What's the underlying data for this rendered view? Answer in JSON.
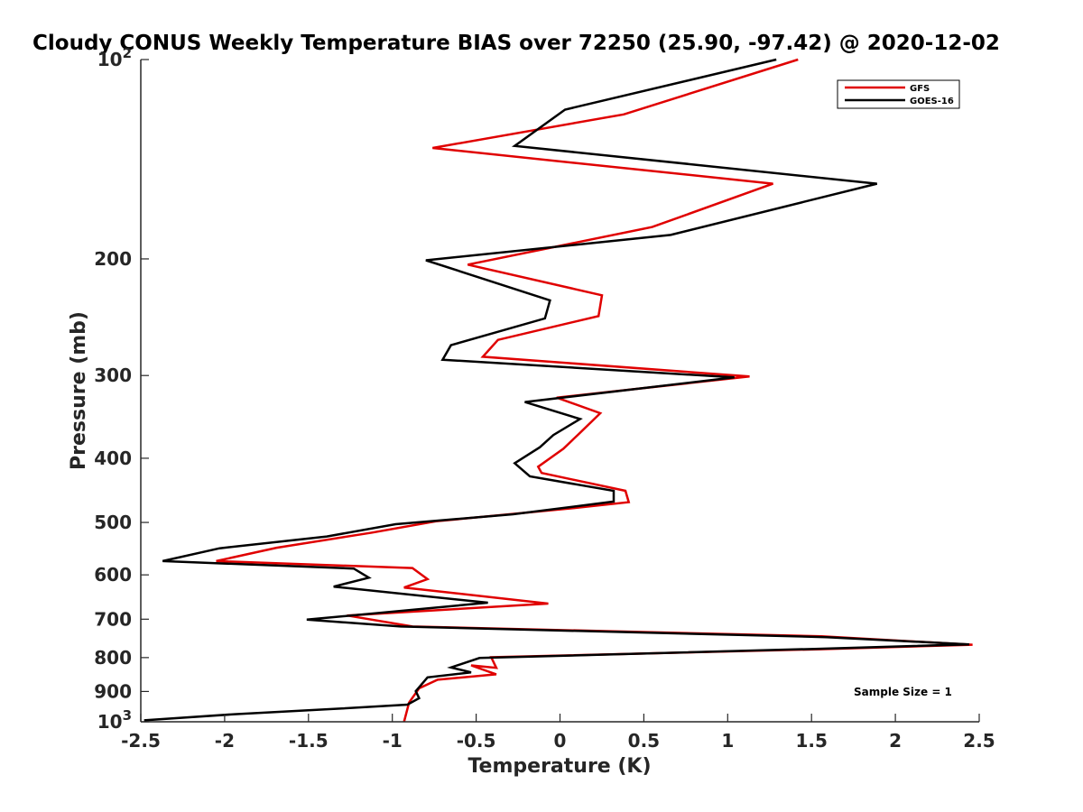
{
  "chart_data": {
    "type": "line",
    "title": "Cloudy CONUS Weekly Temperature BIAS over 72250 (25.90, -97.42) @ 2020-12-02",
    "xlabel": "Temperature (K)",
    "ylabel": "Pressure (mb)",
    "xlim": [
      -2.5,
      2.5
    ],
    "ylim": [
      1000,
      100
    ],
    "y_scale": "log",
    "y_reversed": true,
    "grid": false,
    "legend_position": "top-right",
    "x_ticks": [
      "-2.5",
      "-2",
      "-1.5",
      "-1",
      "-0.5",
      "0",
      "0.5",
      "1",
      "1.5",
      "2",
      "2.5"
    ],
    "y_ticks": [
      {
        "value": 100,
        "base": "10",
        "exp": "2"
      },
      {
        "value": 200,
        "label": "200"
      },
      {
        "value": 300,
        "label": "300"
      },
      {
        "value": 400,
        "label": "400"
      },
      {
        "value": 500,
        "label": "500"
      },
      {
        "value": 600,
        "label": "600"
      },
      {
        "value": 700,
        "label": "700"
      },
      {
        "value": 800,
        "label": "800"
      },
      {
        "value": 900,
        "label": "900"
      },
      {
        "value": 1000,
        "base": "10",
        "exp": "3"
      }
    ],
    "series": [
      {
        "name": "GFS",
        "color": "#e00000",
        "points": [
          [
            1.42,
            100
          ],
          [
            0.38,
            121
          ],
          [
            -0.76,
            136
          ],
          [
            1.27,
            154
          ],
          [
            0.55,
            179
          ],
          [
            -0.55,
            204
          ],
          [
            0.25,
            227
          ],
          [
            0.23,
            244
          ],
          [
            -0.37,
            265
          ],
          [
            -0.46,
            281
          ],
          [
            1.13,
            301
          ],
          [
            -0.02,
            324
          ],
          [
            0.24,
            342
          ],
          [
            0.12,
            366
          ],
          [
            0.02,
            387
          ],
          [
            -0.13,
            412
          ],
          [
            -0.11,
            421
          ],
          [
            0.39,
            448
          ],
          [
            0.41,
            466
          ],
          [
            0.07,
            476
          ],
          [
            -0.74,
            498
          ],
          [
            -1.12,
            518
          ],
          [
            -1.69,
            546
          ],
          [
            -2.05,
            572
          ],
          [
            -0.88,
            586
          ],
          [
            -0.79,
            609
          ],
          [
            -0.93,
            627
          ],
          [
            -0.07,
            663
          ],
          [
            -1.27,
            691
          ],
          [
            -0.88,
            718
          ],
          [
            1.56,
            743
          ],
          [
            2.46,
            765
          ],
          [
            1.55,
            777
          ],
          [
            -0.41,
            799
          ],
          [
            -0.38,
            829
          ],
          [
            -0.53,
            822
          ],
          [
            -0.38,
            848
          ],
          [
            -0.73,
            864
          ],
          [
            -0.84,
            890
          ],
          [
            -0.9,
            935
          ],
          [
            -0.93,
            1000
          ]
        ]
      },
      {
        "name": "GOES-16",
        "color": "#000000",
        "points": [
          [
            1.29,
            100
          ],
          [
            0.03,
            119
          ],
          [
            -0.27,
            135
          ],
          [
            1.89,
            154
          ],
          [
            0.66,
            184
          ],
          [
            -0.8,
            201
          ],
          [
            -0.06,
            231
          ],
          [
            -0.09,
            246
          ],
          [
            -0.65,
            270
          ],
          [
            -0.7,
            284
          ],
          [
            1.04,
            302
          ],
          [
            -0.21,
            329
          ],
          [
            0.12,
            349
          ],
          [
            -0.04,
            369
          ],
          [
            -0.12,
            385
          ],
          [
            -0.27,
            407
          ],
          [
            -0.18,
            426
          ],
          [
            0.32,
            448
          ],
          [
            0.32,
            465
          ],
          [
            -0.28,
            486
          ],
          [
            -0.98,
            503
          ],
          [
            -1.39,
            525
          ],
          [
            -2.03,
            547
          ],
          [
            -2.37,
            572
          ],
          [
            -1.23,
            587
          ],
          [
            -1.14,
            606
          ],
          [
            -1.35,
            625
          ],
          [
            -0.43,
            661
          ],
          [
            -1.51,
            701
          ],
          [
            -0.95,
            718
          ],
          [
            1.59,
            745
          ],
          [
            2.44,
            764
          ],
          [
            1.52,
            776
          ],
          [
            -0.48,
            801
          ],
          [
            -0.65,
            828
          ],
          [
            -0.53,
            842
          ],
          [
            -0.79,
            857
          ],
          [
            -0.86,
            899
          ],
          [
            -0.84,
            921
          ],
          [
            -0.91,
            942
          ],
          [
            -1.3,
            955
          ],
          [
            -1.94,
            974
          ],
          [
            -2.48,
            995
          ]
        ]
      }
    ],
    "annotation": "Sample Size = 1"
  }
}
